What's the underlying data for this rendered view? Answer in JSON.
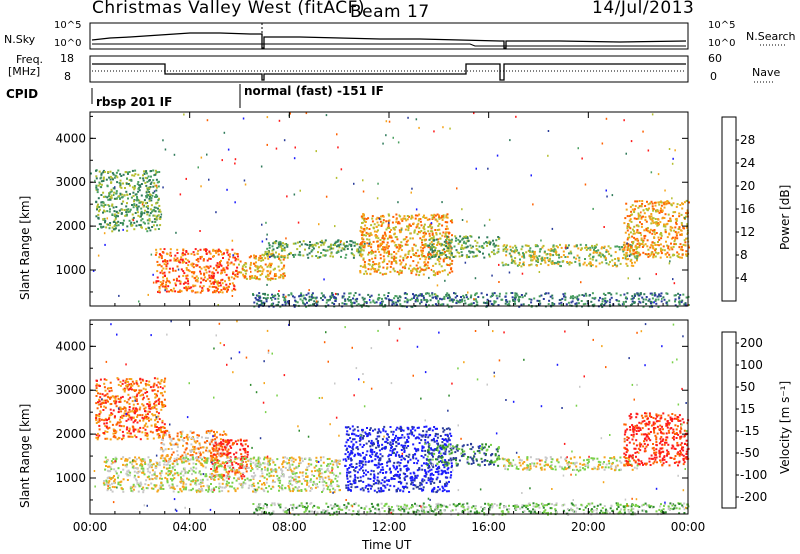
{
  "header": {
    "station": "Christmas Valley West (fitACF)",
    "beam": "Beam 17",
    "date": "14/Jul/2013"
  },
  "top_panels": {
    "nsky_label": "N.Sky",
    "nsky_ticks": [
      "10^5",
      "10^0"
    ],
    "nsearch_label": "N.Search",
    "freq_label_line1": "Freq.",
    "freq_label_line2": "[MHz]",
    "freq_ticks": [
      "18",
      "8"
    ],
    "nave_label": "Nave",
    "nave_ticks": [
      "60",
      "0"
    ],
    "cpid_label": "CPID",
    "cpid_segments": [
      {
        "label": "rbsp 201 IF"
      },
      {
        "label": "normal (fast) -151 IF"
      }
    ]
  },
  "chart_data": [
    {
      "type": "heatmap",
      "title": "",
      "xlabel": "Time UT",
      "ylabel": "Slant Range [km]",
      "x_ticks": [
        "00:00",
        "04:00",
        "08:00",
        "12:00",
        "16:00",
        "20:00",
        "00:00"
      ],
      "y_ticks": [
        "1000",
        "2000",
        "3000",
        "4000"
      ],
      "xlim_hours": [
        0,
        24
      ],
      "ylim_km": [
        180,
        4600
      ],
      "colorbar": {
        "label": "Power [dB]",
        "ticks": [
          "4",
          "8",
          "12",
          "16",
          "20",
          "24",
          "28"
        ],
        "colors": [
          "#1a1aff",
          "#2a3c9a",
          "#2f7a5a",
          "#4aa060",
          "#b5bf2f",
          "#f5a51a",
          "#ff6000",
          "#ff1a1a"
        ]
      },
      "echo_regions": [
        {
          "t0": 0.2,
          "t1": 2.8,
          "r0": 1900,
          "r1": 3300,
          "level": 3
        },
        {
          "t0": 2.6,
          "t1": 5.9,
          "r0": 500,
          "r1": 1500,
          "level": 6
        },
        {
          "t0": 5.9,
          "t1": 7.8,
          "r0": 800,
          "r1": 1400,
          "level": 5
        },
        {
          "t0": 7.0,
          "t1": 11.0,
          "r0": 1300,
          "r1": 1700,
          "level": 3
        },
        {
          "t0": 10.8,
          "t1": 14.5,
          "r0": 900,
          "r1": 2300,
          "level": 5
        },
        {
          "t0": 13.5,
          "t1": 16.4,
          "r0": 1300,
          "r1": 1800,
          "level": 3
        },
        {
          "t0": 16.5,
          "t1": 22.0,
          "r0": 1100,
          "r1": 1600,
          "level": 4
        },
        {
          "t0": 21.4,
          "t1": 24.0,
          "r0": 1300,
          "r1": 2600,
          "level": 5
        },
        {
          "t0": 6.5,
          "t1": 24.0,
          "r0": 180,
          "r1": 500,
          "level": 2
        }
      ]
    },
    {
      "type": "heatmap",
      "title": "",
      "xlabel": "Time UT",
      "ylabel": "Slant Range [km]",
      "x_ticks": [
        "00:00",
        "04:00",
        "08:00",
        "12:00",
        "16:00",
        "20:00",
        "00:00"
      ],
      "y_ticks": [
        "1000",
        "2000",
        "3000",
        "4000"
      ],
      "xlim_hours": [
        0,
        24
      ],
      "ylim_km": [
        180,
        4600
      ],
      "colorbar": {
        "label": "Velocity [m s⁻¹]",
        "ticks": [
          "200",
          "100",
          "50",
          "15",
          "-15",
          "-50",
          "-100",
          "-200"
        ],
        "colors": [
          "#1a1aff",
          "#2a3c9a",
          "#2e8a2e",
          "#7ad14a",
          "#c8c8c8",
          "#f5a51a",
          "#ff6000",
          "#ff1a1a"
        ]
      },
      "echo_regions": [
        {
          "t0": 0.2,
          "t1": 3.0,
          "r0": 1900,
          "r1": 3300,
          "level": 6
        },
        {
          "t0": 2.8,
          "t1": 5.5,
          "r0": 1400,
          "r1": 2100,
          "level": 5
        },
        {
          "t0": 4.8,
          "t1": 6.3,
          "r0": 1000,
          "r1": 1900,
          "level": 7
        },
        {
          "t0": 0.5,
          "t1": 10.0,
          "r0": 700,
          "r1": 1500,
          "level": 4
        },
        {
          "t0": 10.2,
          "t1": 14.5,
          "r0": 700,
          "r1": 2200,
          "level": 0
        },
        {
          "t0": 13.5,
          "t1": 16.4,
          "r0": 1300,
          "r1": 1800,
          "level": 2
        },
        {
          "t0": 16.5,
          "t1": 22.0,
          "r0": 1200,
          "r1": 1500,
          "level": 4
        },
        {
          "t0": 21.4,
          "t1": 24.0,
          "r0": 1300,
          "r1": 2500,
          "level": 7
        },
        {
          "t0": 6.5,
          "t1": 24.0,
          "r0": 180,
          "r1": 450,
          "level": 3
        }
      ]
    }
  ]
}
